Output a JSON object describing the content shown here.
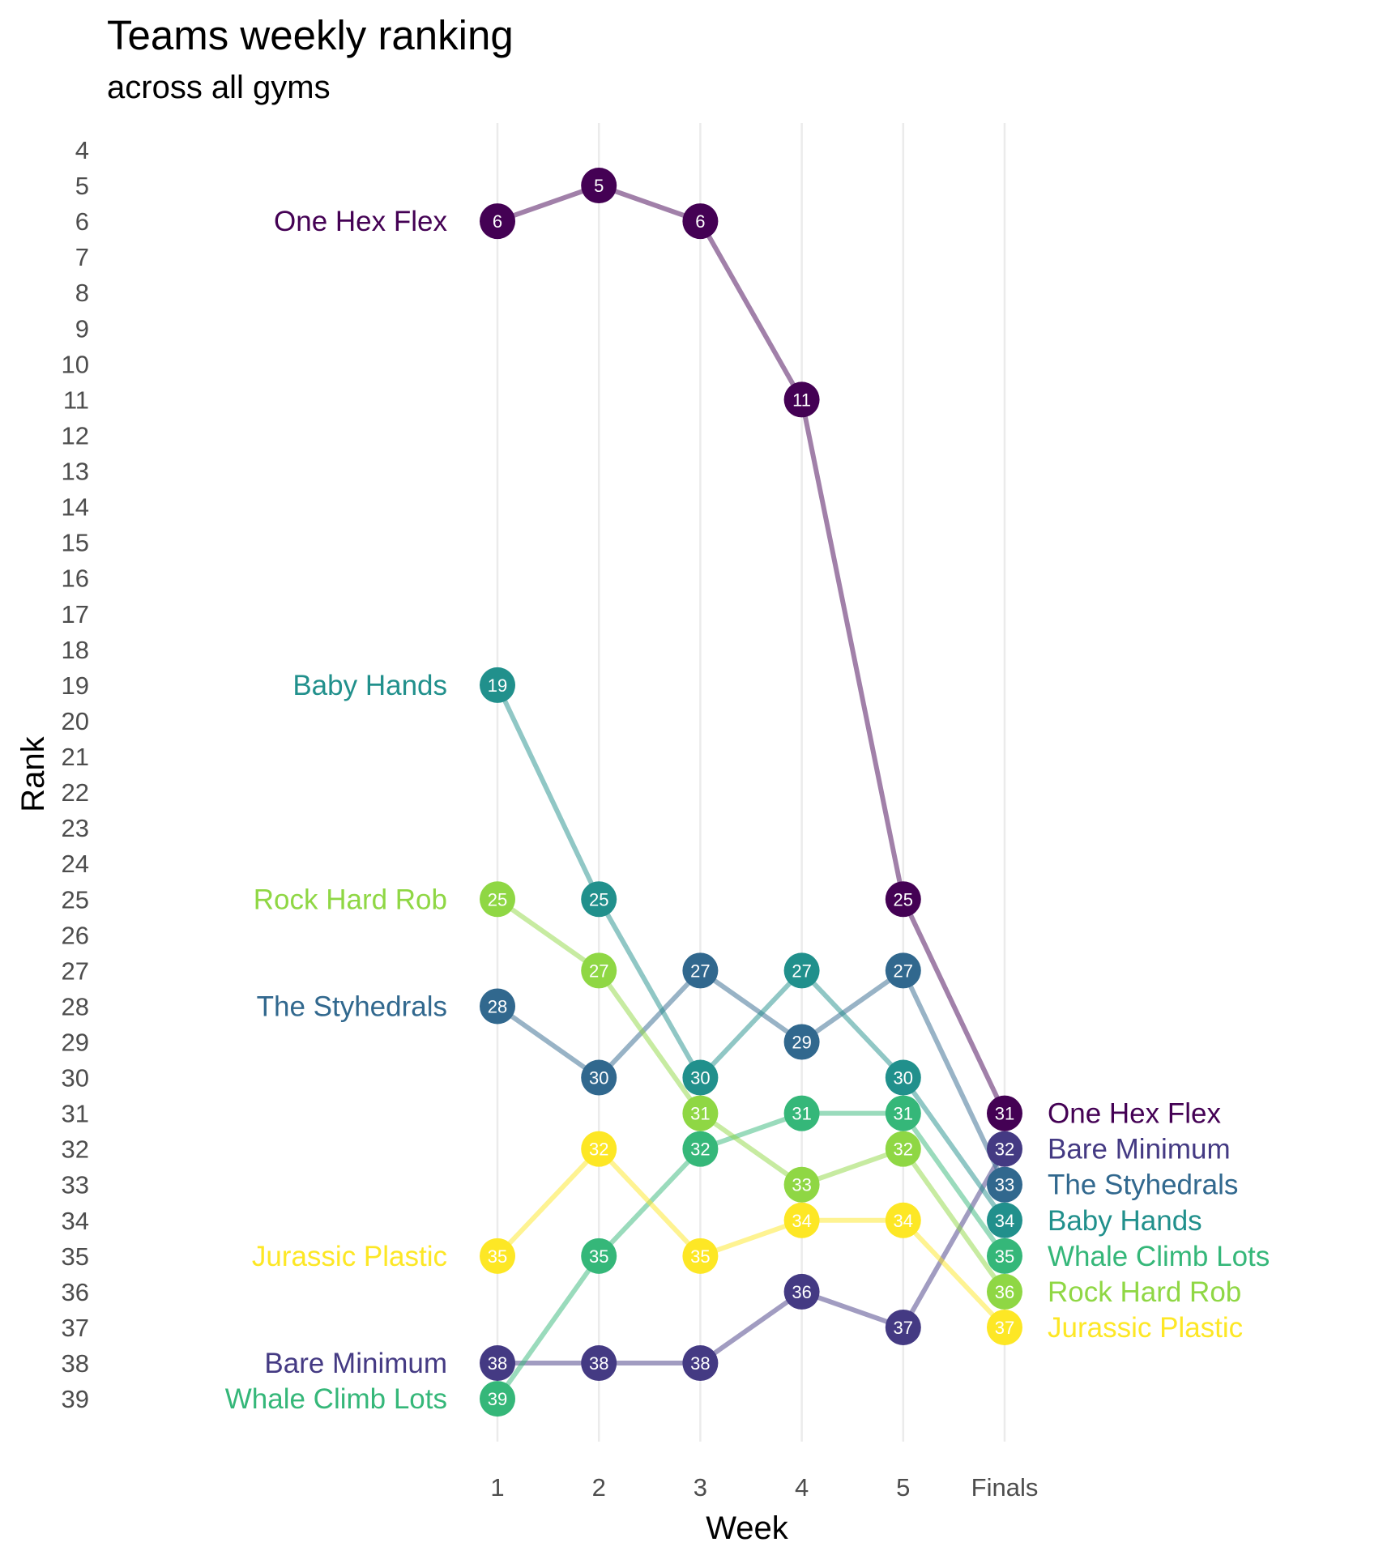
{
  "chart_data": {
    "type": "line",
    "title": "Teams weekly ranking",
    "subtitle": "across all gyms",
    "xlabel": "Week",
    "ylabel": "Rank",
    "categories": [
      "1",
      "2",
      "3",
      "4",
      "5",
      "Finals"
    ],
    "ylim": [
      4,
      39
    ],
    "y_reversed": true,
    "y_ticks": [
      4,
      5,
      6,
      7,
      8,
      9,
      10,
      11,
      12,
      13,
      14,
      15,
      16,
      17,
      18,
      19,
      20,
      21,
      22,
      23,
      24,
      25,
      26,
      27,
      28,
      29,
      30,
      31,
      32,
      33,
      34,
      35,
      36,
      37,
      38,
      39
    ],
    "grid": "vertical only",
    "legend": "labels at line ends",
    "series": [
      {
        "name": "One Hex Flex",
        "color": "#440154",
        "values": [
          6,
          5,
          6,
          11,
          25,
          31
        ]
      },
      {
        "name": "Bare Minimum",
        "color": "#443A83",
        "values": [
          38,
          38,
          38,
          36,
          37,
          32
        ]
      },
      {
        "name": "The Styhedrals",
        "color": "#31688E",
        "values": [
          28,
          30,
          27,
          29,
          27,
          33
        ]
      },
      {
        "name": "Baby Hands",
        "color": "#21908C",
        "values": [
          19,
          25,
          30,
          27,
          30,
          34
        ]
      },
      {
        "name": "Whale Climb Lots",
        "color": "#35B779",
        "values": [
          39,
          35,
          32,
          31,
          31,
          35
        ]
      },
      {
        "name": "Rock Hard Rob",
        "color": "#8FD744",
        "values": [
          25,
          27,
          31,
          33,
          32,
          36
        ]
      },
      {
        "name": "Jurassic Plastic",
        "color": "#FDE725",
        "values": [
          35,
          32,
          35,
          34,
          34,
          37
        ]
      }
    ]
  }
}
